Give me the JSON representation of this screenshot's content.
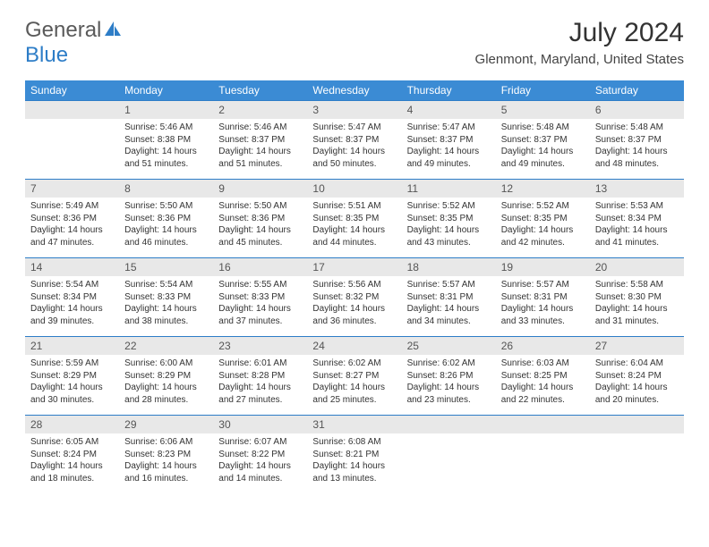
{
  "logo": {
    "text1": "General",
    "text2": "Blue"
  },
  "title": "July 2024",
  "location": "Glenmont, Maryland, United States",
  "colors": {
    "header_bg": "#3b8bd4",
    "header_text": "#ffffff",
    "daynum_bg": "#e8e8e8",
    "border": "#2d7dc7",
    "logo_gray": "#5a5a5a",
    "logo_blue": "#2d7dc7"
  },
  "days_of_week": [
    "Sunday",
    "Monday",
    "Tuesday",
    "Wednesday",
    "Thursday",
    "Friday",
    "Saturday"
  ],
  "weeks": [
    {
      "nums": [
        "",
        "1",
        "2",
        "3",
        "4",
        "5",
        "6"
      ],
      "cells": [
        null,
        {
          "sr": "Sunrise: 5:46 AM",
          "ss": "Sunset: 8:38 PM",
          "dl": "Daylight: 14 hours and 51 minutes."
        },
        {
          "sr": "Sunrise: 5:46 AM",
          "ss": "Sunset: 8:37 PM",
          "dl": "Daylight: 14 hours and 51 minutes."
        },
        {
          "sr": "Sunrise: 5:47 AM",
          "ss": "Sunset: 8:37 PM",
          "dl": "Daylight: 14 hours and 50 minutes."
        },
        {
          "sr": "Sunrise: 5:47 AM",
          "ss": "Sunset: 8:37 PM",
          "dl": "Daylight: 14 hours and 49 minutes."
        },
        {
          "sr": "Sunrise: 5:48 AM",
          "ss": "Sunset: 8:37 PM",
          "dl": "Daylight: 14 hours and 49 minutes."
        },
        {
          "sr": "Sunrise: 5:48 AM",
          "ss": "Sunset: 8:37 PM",
          "dl": "Daylight: 14 hours and 48 minutes."
        }
      ]
    },
    {
      "nums": [
        "7",
        "8",
        "9",
        "10",
        "11",
        "12",
        "13"
      ],
      "cells": [
        {
          "sr": "Sunrise: 5:49 AM",
          "ss": "Sunset: 8:36 PM",
          "dl": "Daylight: 14 hours and 47 minutes."
        },
        {
          "sr": "Sunrise: 5:50 AM",
          "ss": "Sunset: 8:36 PM",
          "dl": "Daylight: 14 hours and 46 minutes."
        },
        {
          "sr": "Sunrise: 5:50 AM",
          "ss": "Sunset: 8:36 PM",
          "dl": "Daylight: 14 hours and 45 minutes."
        },
        {
          "sr": "Sunrise: 5:51 AM",
          "ss": "Sunset: 8:35 PM",
          "dl": "Daylight: 14 hours and 44 minutes."
        },
        {
          "sr": "Sunrise: 5:52 AM",
          "ss": "Sunset: 8:35 PM",
          "dl": "Daylight: 14 hours and 43 minutes."
        },
        {
          "sr": "Sunrise: 5:52 AM",
          "ss": "Sunset: 8:35 PM",
          "dl": "Daylight: 14 hours and 42 minutes."
        },
        {
          "sr": "Sunrise: 5:53 AM",
          "ss": "Sunset: 8:34 PM",
          "dl": "Daylight: 14 hours and 41 minutes."
        }
      ]
    },
    {
      "nums": [
        "14",
        "15",
        "16",
        "17",
        "18",
        "19",
        "20"
      ],
      "cells": [
        {
          "sr": "Sunrise: 5:54 AM",
          "ss": "Sunset: 8:34 PM",
          "dl": "Daylight: 14 hours and 39 minutes."
        },
        {
          "sr": "Sunrise: 5:54 AM",
          "ss": "Sunset: 8:33 PM",
          "dl": "Daylight: 14 hours and 38 minutes."
        },
        {
          "sr": "Sunrise: 5:55 AM",
          "ss": "Sunset: 8:33 PM",
          "dl": "Daylight: 14 hours and 37 minutes."
        },
        {
          "sr": "Sunrise: 5:56 AM",
          "ss": "Sunset: 8:32 PM",
          "dl": "Daylight: 14 hours and 36 minutes."
        },
        {
          "sr": "Sunrise: 5:57 AM",
          "ss": "Sunset: 8:31 PM",
          "dl": "Daylight: 14 hours and 34 minutes."
        },
        {
          "sr": "Sunrise: 5:57 AM",
          "ss": "Sunset: 8:31 PM",
          "dl": "Daylight: 14 hours and 33 minutes."
        },
        {
          "sr": "Sunrise: 5:58 AM",
          "ss": "Sunset: 8:30 PM",
          "dl": "Daylight: 14 hours and 31 minutes."
        }
      ]
    },
    {
      "nums": [
        "21",
        "22",
        "23",
        "24",
        "25",
        "26",
        "27"
      ],
      "cells": [
        {
          "sr": "Sunrise: 5:59 AM",
          "ss": "Sunset: 8:29 PM",
          "dl": "Daylight: 14 hours and 30 minutes."
        },
        {
          "sr": "Sunrise: 6:00 AM",
          "ss": "Sunset: 8:29 PM",
          "dl": "Daylight: 14 hours and 28 minutes."
        },
        {
          "sr": "Sunrise: 6:01 AM",
          "ss": "Sunset: 8:28 PM",
          "dl": "Daylight: 14 hours and 27 minutes."
        },
        {
          "sr": "Sunrise: 6:02 AM",
          "ss": "Sunset: 8:27 PM",
          "dl": "Daylight: 14 hours and 25 minutes."
        },
        {
          "sr": "Sunrise: 6:02 AM",
          "ss": "Sunset: 8:26 PM",
          "dl": "Daylight: 14 hours and 23 minutes."
        },
        {
          "sr": "Sunrise: 6:03 AM",
          "ss": "Sunset: 8:25 PM",
          "dl": "Daylight: 14 hours and 22 minutes."
        },
        {
          "sr": "Sunrise: 6:04 AM",
          "ss": "Sunset: 8:24 PM",
          "dl": "Daylight: 14 hours and 20 minutes."
        }
      ]
    },
    {
      "nums": [
        "28",
        "29",
        "30",
        "31",
        "",
        "",
        ""
      ],
      "cells": [
        {
          "sr": "Sunrise: 6:05 AM",
          "ss": "Sunset: 8:24 PM",
          "dl": "Daylight: 14 hours and 18 minutes."
        },
        {
          "sr": "Sunrise: 6:06 AM",
          "ss": "Sunset: 8:23 PM",
          "dl": "Daylight: 14 hours and 16 minutes."
        },
        {
          "sr": "Sunrise: 6:07 AM",
          "ss": "Sunset: 8:22 PM",
          "dl": "Daylight: 14 hours and 14 minutes."
        },
        {
          "sr": "Sunrise: 6:08 AM",
          "ss": "Sunset: 8:21 PM",
          "dl": "Daylight: 14 hours and 13 minutes."
        },
        null,
        null,
        null
      ]
    }
  ]
}
